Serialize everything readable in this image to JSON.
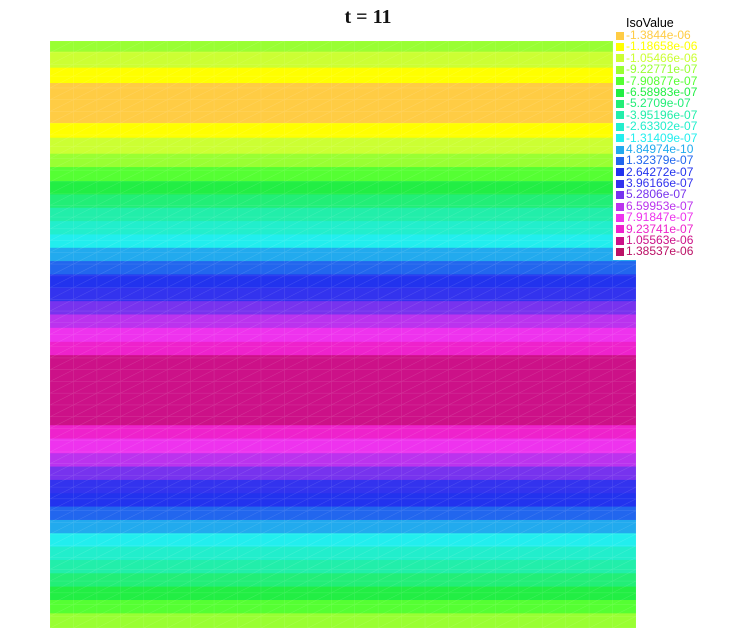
{
  "chart_data": {
    "type": "heatmap",
    "title": "t = 11",
    "legend": {
      "title": "IsoValue",
      "placement": "top-right",
      "entries": [
        {
          "label": "-1.3844e-06",
          "color": "#ffcc44"
        },
        {
          "label": "-1.18658e-06",
          "color": "#ffff00"
        },
        {
          "label": "-1.05466e-06",
          "color": "#ccff33"
        },
        {
          "label": "-9.22771e-07",
          "color": "#99ff33"
        },
        {
          "label": "-7.90877e-07",
          "color": "#55ff33"
        },
        {
          "label": "-6.58983e-07",
          "color": "#22ee44"
        },
        {
          "label": "-5.2709e-07",
          "color": "#22ee77"
        },
        {
          "label": "-3.95196e-07",
          "color": "#22eeaa"
        },
        {
          "label": "-2.63302e-07",
          "color": "#22eecc"
        },
        {
          "label": "-1.31409e-07",
          "color": "#22eeee"
        },
        {
          "label": "4.84974e-10",
          "color": "#22aaee"
        },
        {
          "label": "1.32379e-07",
          "color": "#2266ee"
        },
        {
          "label": "2.64272e-07",
          "color": "#2233ee"
        },
        {
          "label": "3.96166e-07",
          "color": "#3333ee"
        },
        {
          "label": "5.2806e-07",
          "color": "#7733ee"
        },
        {
          "label": "6.59953e-07",
          "color": "#bb33ee"
        },
        {
          "label": "7.91847e-07",
          "color": "#ee33ee"
        },
        {
          "label": "9.23741e-07",
          "color": "#ee22cc"
        },
        {
          "label": "1.05563e-06",
          "color": "#cc1188"
        },
        {
          "label": "1.38537e-06",
          "color": "#bb1166"
        }
      ]
    },
    "bands_top_to_bottom": [
      {
        "level": 3,
        "weight": 1.6
      },
      {
        "level": 2,
        "weight": 2.4
      },
      {
        "level": 1,
        "weight": 2.3
      },
      {
        "level": 0,
        "weight": 6.0
      },
      {
        "level": 1,
        "weight": 2.2
      },
      {
        "level": 2,
        "weight": 2.4
      },
      {
        "level": 3,
        "weight": 2.0
      },
      {
        "level": 4,
        "weight": 2.1
      },
      {
        "level": 5,
        "weight": 2.0
      },
      {
        "level": 6,
        "weight": 2.0
      },
      {
        "level": 7,
        "weight": 2.0
      },
      {
        "level": 8,
        "weight": 2.0
      },
      {
        "level": 9,
        "weight": 2.0
      },
      {
        "level": 10,
        "weight": 2.0
      },
      {
        "level": 11,
        "weight": 2.0
      },
      {
        "level": 12,
        "weight": 2.0
      },
      {
        "level": 13,
        "weight": 2.0
      },
      {
        "level": 14,
        "weight": 2.0
      },
      {
        "level": 15,
        "weight": 2.0
      },
      {
        "level": 16,
        "weight": 2.1
      },
      {
        "level": 17,
        "weight": 2.0
      },
      {
        "level": 18,
        "weight": 10.5
      },
      {
        "level": 17,
        "weight": 2.0
      },
      {
        "level": 16,
        "weight": 2.2
      },
      {
        "level": 15,
        "weight": 2.0
      },
      {
        "level": 14,
        "weight": 2.0
      },
      {
        "level": 13,
        "weight": 2.0
      },
      {
        "level": 12,
        "weight": 2.0
      },
      {
        "level": 11,
        "weight": 2.0
      },
      {
        "level": 10,
        "weight": 2.0
      },
      {
        "level": 9,
        "weight": 2.0
      },
      {
        "level": 8,
        "weight": 2.0
      },
      {
        "level": 7,
        "weight": 2.0
      },
      {
        "level": 6,
        "weight": 2.0
      },
      {
        "level": 5,
        "weight": 2.0
      },
      {
        "level": 4,
        "weight": 2.0
      },
      {
        "level": 3,
        "weight": 2.2
      }
    ],
    "mesh_grid": {
      "columns": 25,
      "rows": 50
    },
    "grid": false,
    "axes": false
  }
}
